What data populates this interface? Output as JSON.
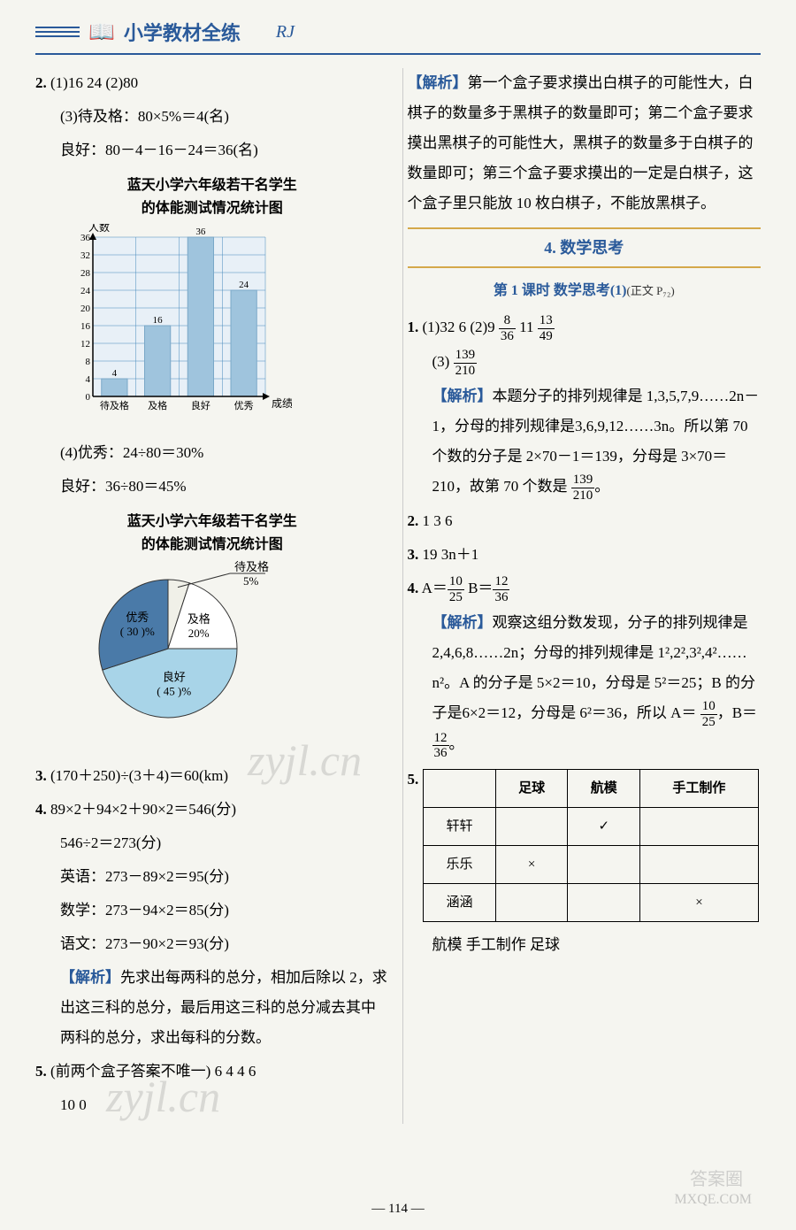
{
  "header": {
    "title": "小学教材全练",
    "subtitle": "RJ"
  },
  "left_column": {
    "q2": {
      "num": "2.",
      "part1": "(1)16  24  (2)80",
      "part3": "(3)待及格：80×5%＝4(名)",
      "good": "良好：80－4－16－24＝36(名)",
      "chart1_title_l1": "蓝天小学六年级若干名学生",
      "chart1_title_l2": "的体能测试情况统计图",
      "part4": "(4)优秀：24÷80＝30%",
      "good2": "良好：36÷80＝45%",
      "chart2_title_l1": "蓝天小学六年级若干名学生",
      "chart2_title_l2": "的体能测试情况统计图"
    },
    "bar_chart": {
      "type": "bar",
      "y_label": "人数",
      "x_label": "成绩",
      "categories": [
        "待及格",
        "及格",
        "良好",
        "优秀"
      ],
      "values": [
        4,
        16,
        36,
        24
      ],
      "y_max": 36,
      "y_tick_step": 4,
      "bar_color": "#7aa8c8",
      "bar_fill": "#9fc4dd",
      "grid_color": "#4488bb",
      "background": "#e8f0f7",
      "label_fontsize": 11,
      "axis_fontsize": 11
    },
    "pie_chart": {
      "type": "pie",
      "slices": [
        {
          "label": "待及格",
          "value": 5,
          "value_text": "5%",
          "color": "#f0f0e8"
        },
        {
          "label": "及格",
          "value": 20,
          "value_text": "20%",
          "color": "#ffffff"
        },
        {
          "label": "良好",
          "blank": "( 45 )",
          "value": 45,
          "value_text": "%",
          "color": "#a8d4e8"
        },
        {
          "label": "优秀",
          "blank": "( 30 )",
          "value": 30,
          "value_text": "%",
          "color": "#4a7aa8"
        }
      ],
      "border_color": "#333"
    },
    "q3": {
      "num": "3.",
      "text": "(170＋250)÷(3＋4)＝60(km)"
    },
    "q4": {
      "num": "4.",
      "l1": "89×2＋94×2＋90×2＝546(分)",
      "l2": "546÷2＝273(分)",
      "l3": "英语：273－89×2＝95(分)",
      "l4": "数学：273－94×2＝85(分)",
      "l5": "语文：273－90×2＝93(分)",
      "analysis_label": "【解析】",
      "analysis": "先求出每两科的总分，相加后除以 2，求出这三科的总分，最后用这三科的总分减去其中两科的总分，求出每科的分数。"
    },
    "q5": {
      "num": "5.",
      "text": "(前两个盒子答案不唯一) 6  4  4  6",
      "l2": "10  0"
    }
  },
  "right_column": {
    "analysis_top": {
      "label": "【解析】",
      "text": "第一个盒子要求摸出白棋子的可能性大，白棋子的数量多于黑棋子的数量即可；第二个盒子要求摸出黑棋子的可能性大，黑棋子的数量多于白棋子的数量即可；第三个盒子要求摸出的一定是白棋子，这个盒子里只能放 10 枚白棋子，不能放黑棋子。"
    },
    "section4": "4. 数学思考",
    "lesson1": {
      "title": "第 1 课时  数学思考(1)",
      "ref": "(正文 P₇₂)"
    },
    "q1": {
      "num": "1.",
      "part1": "(1)32  6  (2)9",
      "frac1_num": "8",
      "frac1_den": "36",
      "mid": "  11",
      "frac2_num": "13",
      "frac2_den": "49",
      "part3": "(3)",
      "frac3_num": "139",
      "frac3_den": "210",
      "analysis_label": "【解析】",
      "analysis_p1": "本题分子的排列规律是 1,3,5,7,9……2n－1，分母的排列规律是3,6,9,12……3n。所以第 70 个数的分子是 2×70－1＝139，分母是 3×70＝210，故第 70 个数是",
      "analysis_frac_num": "139",
      "analysis_frac_den": "210",
      "analysis_end": "。"
    },
    "q2": {
      "num": "2.",
      "text": "1  3  6"
    },
    "q3": {
      "num": "3.",
      "text": "19  3n＋1"
    },
    "q4": {
      "num": "4.",
      "a_eq": "A＝",
      "a_num": "10",
      "a_den": "25",
      "b_eq": "  B＝",
      "b_num": "12",
      "b_den": "36",
      "analysis_label": "【解析】",
      "analysis": "观察这组分数发现，分子的排列规律是 2,4,6,8……2n；分母的排列规律是 1²,2²,3²,4²……n²。A 的分子是 5×2＝10，分母是 5²＝25；B 的分子是6×2＝12，分母是 6²＝36，所以 A＝",
      "end_frac1_num": "10",
      "end_frac1_den": "25",
      "end_mid": "，B＝",
      "end_frac2_num": "12",
      "end_frac2_den": "36",
      "end_final": "。"
    },
    "q5": {
      "num": "5.",
      "table": {
        "headers": [
          "",
          "足球",
          "航模",
          "手工制作"
        ],
        "rows": [
          [
            "轩轩",
            "",
            "✓",
            ""
          ],
          [
            "乐乐",
            "×",
            "",
            ""
          ],
          [
            "涵涵",
            "",
            "",
            "×"
          ]
        ]
      },
      "bottom": "航模  手工制作  足球"
    }
  },
  "page_number": "— 114 —",
  "watermarks": {
    "w1": "zyjl.cn",
    "w2": "zyjl.cn",
    "bottom": "MXQE.COM",
    "badge": "答案圈"
  }
}
